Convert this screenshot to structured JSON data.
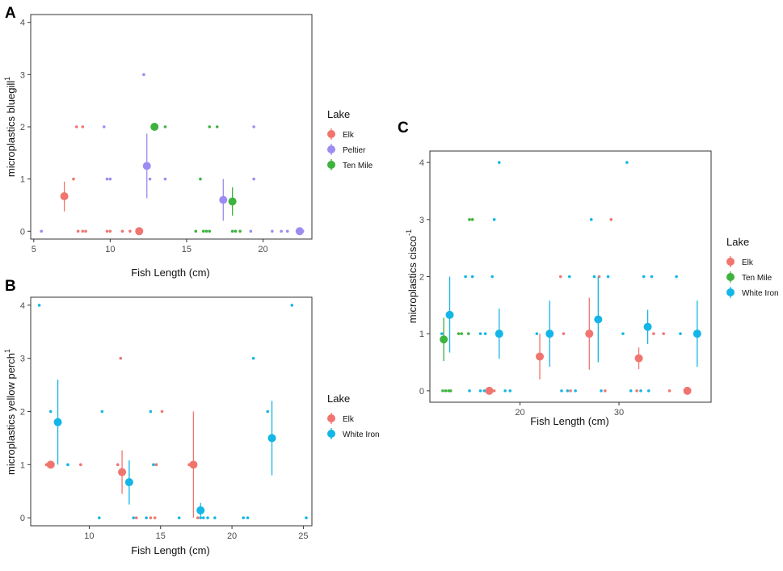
{
  "colors": {
    "Elk": "#F0756F",
    "Peltier": "#9C8CF2",
    "Ten Mile": "#3DB33D",
    "White Iron": "#13B6E6"
  },
  "chart_data": [
    {
      "panel": "A",
      "type": "scatter",
      "xlabel": "Fish Length (cm)",
      "ylabel": "microplastics bluegill",
      "ylabel_sup": "1",
      "xlim": [
        4.8,
        23.2
      ],
      "ylim": [
        -0.15,
        4.15
      ],
      "xticks": [
        5,
        10,
        15,
        20
      ],
      "yticks": [
        0,
        1,
        2,
        3,
        4
      ],
      "legend_title": "Lake",
      "legend": [
        "Elk",
        "Peltier",
        "Ten Mile"
      ],
      "raw": [
        {
          "lake": "Elk",
          "x": 7.6,
          "y": 1
        },
        {
          "lake": "Elk",
          "x": 7.8,
          "y": 2
        },
        {
          "lake": "Elk",
          "x": 8.2,
          "y": 2
        },
        {
          "lake": "Elk",
          "x": 7.9,
          "y": 0
        },
        {
          "lake": "Elk",
          "x": 8.2,
          "y": 0
        },
        {
          "lake": "Elk",
          "x": 8.4,
          "y": 0
        },
        {
          "lake": "Elk",
          "x": 9.8,
          "y": 0
        },
        {
          "lake": "Elk",
          "x": 10.0,
          "y": 0
        },
        {
          "lake": "Elk",
          "x": 10.8,
          "y": 0
        },
        {
          "lake": "Elk",
          "x": 11.3,
          "y": 0
        },
        {
          "lake": "Peltier",
          "x": 5.5,
          "y": 0
        },
        {
          "lake": "Peltier",
          "x": 9.6,
          "y": 2
        },
        {
          "lake": "Peltier",
          "x": 9.8,
          "y": 1
        },
        {
          "lake": "Peltier",
          "x": 10.0,
          "y": 1
        },
        {
          "lake": "Peltier",
          "x": 12.2,
          "y": 3
        },
        {
          "lake": "Peltier",
          "x": 12.6,
          "y": 1
        },
        {
          "lake": "Peltier",
          "x": 13.6,
          "y": 1
        },
        {
          "lake": "Peltier",
          "x": 19.4,
          "y": 1
        },
        {
          "lake": "Peltier",
          "x": 19.4,
          "y": 2
        },
        {
          "lake": "Peltier",
          "x": 19.2,
          "y": 0
        },
        {
          "lake": "Peltier",
          "x": 20.6,
          "y": 0
        },
        {
          "lake": "Peltier",
          "x": 21.2,
          "y": 0
        },
        {
          "lake": "Peltier",
          "x": 21.6,
          "y": 0
        },
        {
          "lake": "Peltier",
          "x": 22.6,
          "y": 0
        },
        {
          "lake": "Ten Mile",
          "x": 13.6,
          "y": 2
        },
        {
          "lake": "Ten Mile",
          "x": 15.6,
          "y": 0
        },
        {
          "lake": "Ten Mile",
          "x": 15.9,
          "y": 1
        },
        {
          "lake": "Ten Mile",
          "x": 16.1,
          "y": 0
        },
        {
          "lake": "Ten Mile",
          "x": 16.3,
          "y": 0
        },
        {
          "lake": "Ten Mile",
          "x": 16.5,
          "y": 0
        },
        {
          "lake": "Ten Mile",
          "x": 16.5,
          "y": 2
        },
        {
          "lake": "Ten Mile",
          "x": 17.0,
          "y": 2
        },
        {
          "lake": "Ten Mile",
          "x": 18.0,
          "y": 0
        },
        {
          "lake": "Ten Mile",
          "x": 18.2,
          "y": 0
        },
        {
          "lake": "Ten Mile",
          "x": 18.5,
          "y": 0
        }
      ],
      "means": [
        {
          "lake": "Elk",
          "x": 7.0,
          "y": 0.67,
          "low": 0.38,
          "high": 0.95
        },
        {
          "lake": "Elk",
          "x": 11.9,
          "y": 0.0,
          "low": 0.0,
          "high": 0.0
        },
        {
          "lake": "Peltier",
          "x": 12.4,
          "y": 1.25,
          "low": 0.63,
          "high": 1.87
        },
        {
          "lake": "Peltier",
          "x": 17.4,
          "y": 0.6,
          "low": 0.2,
          "high": 1.0
        },
        {
          "lake": "Peltier",
          "x": 22.4,
          "y": 0.0,
          "low": 0.0,
          "high": 0.0
        },
        {
          "lake": "Ten Mile",
          "x": 12.9,
          "y": 2.0,
          "low": 2.0,
          "high": 2.0
        },
        {
          "lake": "Ten Mile",
          "x": 18.0,
          "y": 0.57,
          "low": 0.3,
          "high": 0.84
        }
      ]
    },
    {
      "panel": "B",
      "type": "scatter",
      "xlabel": "Fish Length (cm)",
      "ylabel": "microplastics yellow perch",
      "ylabel_sup": "1",
      "xlim": [
        5.9,
        25.6
      ],
      "ylim": [
        -0.15,
        4.15
      ],
      "xticks": [
        10,
        15,
        20,
        25
      ],
      "yticks": [
        0,
        1,
        2,
        3,
        4
      ],
      "legend_title": "Lake",
      "legend": [
        "Elk",
        "White Iron"
      ],
      "raw": [
        {
          "lake": "Elk",
          "x": 7.0,
          "y": 1
        },
        {
          "lake": "Elk",
          "x": 9.4,
          "y": 1
        },
        {
          "lake": "Elk",
          "x": 12.0,
          "y": 1
        },
        {
          "lake": "Elk",
          "x": 12.2,
          "y": 3
        },
        {
          "lake": "Elk",
          "x": 13.3,
          "y": 0
        },
        {
          "lake": "Elk",
          "x": 14.3,
          "y": 0
        },
        {
          "lake": "Elk",
          "x": 14.6,
          "y": 0
        },
        {
          "lake": "Elk",
          "x": 14.7,
          "y": 1
        },
        {
          "lake": "Elk",
          "x": 15.1,
          "y": 2
        },
        {
          "lake": "Elk",
          "x": 17.0,
          "y": 1
        },
        {
          "lake": "Elk",
          "x": 17.6,
          "y": 0
        },
        {
          "lake": "White Iron",
          "x": 6.5,
          "y": 4
        },
        {
          "lake": "White Iron",
          "x": 7.3,
          "y": 2
        },
        {
          "lake": "White Iron",
          "x": 8.5,
          "y": 1
        },
        {
          "lake": "White Iron",
          "x": 10.7,
          "y": 0
        },
        {
          "lake": "White Iron",
          "x": 10.9,
          "y": 2
        },
        {
          "lake": "White Iron",
          "x": 13.1,
          "y": 0
        },
        {
          "lake": "White Iron",
          "x": 14.0,
          "y": 0
        },
        {
          "lake": "White Iron",
          "x": 14.3,
          "y": 2
        },
        {
          "lake": "White Iron",
          "x": 14.5,
          "y": 1
        },
        {
          "lake": "White Iron",
          "x": 16.3,
          "y": 0
        },
        {
          "lake": "White Iron",
          "x": 17.4,
          "y": 1
        },
        {
          "lake": "White Iron",
          "x": 17.8,
          "y": 0
        },
        {
          "lake": "White Iron",
          "x": 18.0,
          "y": 0
        },
        {
          "lake": "White Iron",
          "x": 18.3,
          "y": 0
        },
        {
          "lake": "White Iron",
          "x": 18.8,
          "y": 0
        },
        {
          "lake": "White Iron",
          "x": 20.8,
          "y": 0
        },
        {
          "lake": "White Iron",
          "x": 21.1,
          "y": 0
        },
        {
          "lake": "White Iron",
          "x": 21.5,
          "y": 3
        },
        {
          "lake": "White Iron",
          "x": 22.5,
          "y": 2
        },
        {
          "lake": "White Iron",
          "x": 24.2,
          "y": 4
        },
        {
          "lake": "White Iron",
          "x": 25.2,
          "y": 0
        }
      ],
      "means": [
        {
          "lake": "Elk",
          "x": 7.3,
          "y": 1.0,
          "low": 1.0,
          "high": 1.0
        },
        {
          "lake": "Elk",
          "x": 12.3,
          "y": 0.86,
          "low": 0.45,
          "high": 1.27
        },
        {
          "lake": "Elk",
          "x": 17.3,
          "y": 1.0,
          "low": 0.0,
          "high": 2.0
        },
        {
          "lake": "White Iron",
          "x": 7.8,
          "y": 1.8,
          "low": 1.0,
          "high": 2.6
        },
        {
          "lake": "White Iron",
          "x": 12.8,
          "y": 0.67,
          "low": 0.25,
          "high": 1.08
        },
        {
          "lake": "White Iron",
          "x": 17.8,
          "y": 0.14,
          "low": 0.0,
          "high": 0.28
        },
        {
          "lake": "White Iron",
          "x": 22.8,
          "y": 1.5,
          "low": 0.8,
          "high": 2.2
        }
      ]
    },
    {
      "panel": "C",
      "type": "scatter",
      "xlabel": "Fish Length (cm)",
      "ylabel": "microplastics cisco",
      "ylabel_sup": "-1",
      "xlim": [
        10.9,
        39.3
      ],
      "ylim": [
        -0.2,
        4.2
      ],
      "xticks": [
        20,
        30
      ],
      "yticks": [
        0,
        1,
        2,
        3,
        4
      ],
      "legend_title": "Lake",
      "legend": [
        "Elk",
        "Ten Mile",
        "White Iron"
      ],
      "raw": [
        {
          "lake": "Ten Mile",
          "x": 12.2,
          "y": 0
        },
        {
          "lake": "Ten Mile",
          "x": 12.5,
          "y": 0
        },
        {
          "lake": "Ten Mile",
          "x": 12.8,
          "y": 0
        },
        {
          "lake": "Ten Mile",
          "x": 13.0,
          "y": 0
        },
        {
          "lake": "Ten Mile",
          "x": 13.8,
          "y": 1
        },
        {
          "lake": "Ten Mile",
          "x": 14.1,
          "y": 1
        },
        {
          "lake": "Ten Mile",
          "x": 14.8,
          "y": 1
        },
        {
          "lake": "Ten Mile",
          "x": 14.9,
          "y": 3
        },
        {
          "lake": "Ten Mile",
          "x": 15.2,
          "y": 3
        },
        {
          "lake": "White Iron",
          "x": 12.1,
          "y": 1
        },
        {
          "lake": "White Iron",
          "x": 14.5,
          "y": 2
        },
        {
          "lake": "White Iron",
          "x": 15.2,
          "y": 2
        },
        {
          "lake": "White Iron",
          "x": 14.9,
          "y": 0
        },
        {
          "lake": "White Iron",
          "x": 16.0,
          "y": 1
        },
        {
          "lake": "White Iron",
          "x": 16.5,
          "y": 1
        },
        {
          "lake": "White Iron",
          "x": 16.0,
          "y": 0
        },
        {
          "lake": "White Iron",
          "x": 16.4,
          "y": 0
        },
        {
          "lake": "White Iron",
          "x": 17.2,
          "y": 2
        },
        {
          "lake": "White Iron",
          "x": 17.4,
          "y": 3
        },
        {
          "lake": "White Iron",
          "x": 17.9,
          "y": 4
        },
        {
          "lake": "White Iron",
          "x": 18.5,
          "y": 0
        },
        {
          "lake": "White Iron",
          "x": 19.0,
          "y": 0
        },
        {
          "lake": "White Iron",
          "x": 21.7,
          "y": 1
        },
        {
          "lake": "White Iron",
          "x": 24.2,
          "y": 0
        },
        {
          "lake": "White Iron",
          "x": 24.8,
          "y": 0
        },
        {
          "lake": "White Iron",
          "x": 25.0,
          "y": 2
        },
        {
          "lake": "White Iron",
          "x": 25.6,
          "y": 0
        },
        {
          "lake": "White Iron",
          "x": 27.2,
          "y": 3
        },
        {
          "lake": "White Iron",
          "x": 27.5,
          "y": 2
        },
        {
          "lake": "White Iron",
          "x": 28.2,
          "y": 0
        },
        {
          "lake": "White Iron",
          "x": 28.9,
          "y": 2
        },
        {
          "lake": "White Iron",
          "x": 30.4,
          "y": 1
        },
        {
          "lake": "White Iron",
          "x": 30.8,
          "y": 4
        },
        {
          "lake": "White Iron",
          "x": 31.2,
          "y": 0
        },
        {
          "lake": "White Iron",
          "x": 32.2,
          "y": 0
        },
        {
          "lake": "White Iron",
          "x": 32.5,
          "y": 2
        },
        {
          "lake": "White Iron",
          "x": 33.0,
          "y": 0
        },
        {
          "lake": "White Iron",
          "x": 33.3,
          "y": 2
        },
        {
          "lake": "White Iron",
          "x": 35.8,
          "y": 2
        },
        {
          "lake": "White Iron",
          "x": 36.2,
          "y": 1
        },
        {
          "lake": "White Iron",
          "x": 36.8,
          "y": 0
        },
        {
          "lake": "Elk",
          "x": 17.4,
          "y": 0
        },
        {
          "lake": "Elk",
          "x": 24.1,
          "y": 2
        },
        {
          "lake": "Elk",
          "x": 24.4,
          "y": 1
        },
        {
          "lake": "Elk",
          "x": 25.1,
          "y": 0
        },
        {
          "lake": "Elk",
          "x": 28.0,
          "y": 2
        },
        {
          "lake": "Elk",
          "x": 28.6,
          "y": 0
        },
        {
          "lake": "Elk",
          "x": 29.2,
          "y": 3
        },
        {
          "lake": "Elk",
          "x": 31.8,
          "y": 0
        },
        {
          "lake": "Elk",
          "x": 33.5,
          "y": 1
        },
        {
          "lake": "Elk",
          "x": 34.5,
          "y": 1
        },
        {
          "lake": "Elk",
          "x": 35.1,
          "y": 0
        }
      ],
      "means": [
        {
          "lake": "Ten Mile",
          "x": 12.3,
          "y": 0.9,
          "low": 0.52,
          "high": 1.28
        },
        {
          "lake": "White Iron",
          "x": 12.9,
          "y": 1.33,
          "low": 0.67,
          "high": 2.0
        },
        {
          "lake": "Elk",
          "x": 16.9,
          "y": 0.0,
          "low": 0.0,
          "high": 0.0
        },
        {
          "lake": "White Iron",
          "x": 17.9,
          "y": 1.0,
          "low": 0.56,
          "high": 1.44
        },
        {
          "lake": "Elk",
          "x": 22.0,
          "y": 0.6,
          "low": 0.2,
          "high": 1.0
        },
        {
          "lake": "White Iron",
          "x": 23.0,
          "y": 1.0,
          "low": 0.42,
          "high": 1.58
        },
        {
          "lake": "Elk",
          "x": 27.0,
          "y": 1.0,
          "low": 0.37,
          "high": 1.63
        },
        {
          "lake": "White Iron",
          "x": 27.9,
          "y": 1.25,
          "low": 0.5,
          "high": 2.0
        },
        {
          "lake": "Elk",
          "x": 32.0,
          "y": 0.57,
          "low": 0.38,
          "high": 0.76
        },
        {
          "lake": "White Iron",
          "x": 32.9,
          "y": 1.12,
          "low": 0.82,
          "high": 1.42
        },
        {
          "lake": "Elk",
          "x": 36.9,
          "y": 0.0,
          "low": 0.0,
          "high": 0.0
        },
        {
          "lake": "White Iron",
          "x": 37.9,
          "y": 1.0,
          "low": 0.42,
          "high": 1.58
        }
      ]
    }
  ]
}
